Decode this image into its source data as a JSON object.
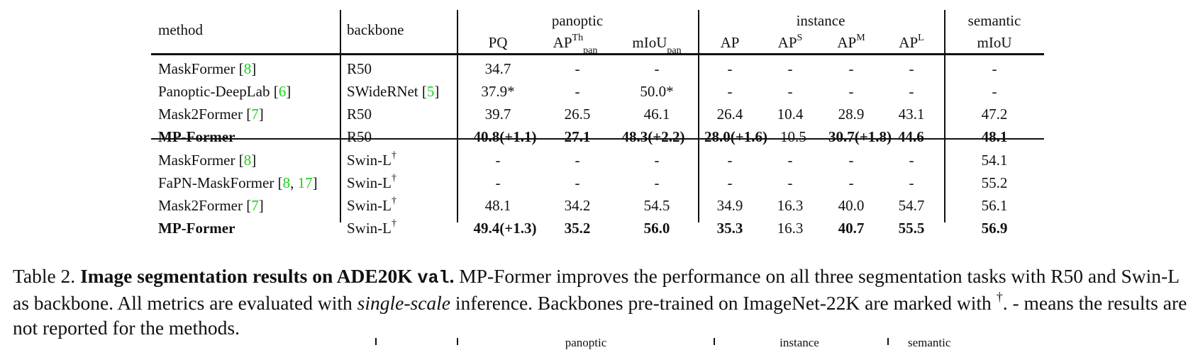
{
  "table": {
    "headers": {
      "method": "method",
      "backbone": "backbone",
      "group_panoptic": "panoptic",
      "group_instance": "instance",
      "group_semantic": "semantic",
      "pq": "PQ",
      "ap_th": "AP",
      "ap_th_sup": "Th",
      "ap_th_sub": "pan",
      "miou_pan": "mIoU",
      "miou_pan_sub": "pan",
      "ap": "AP",
      "ap_s": "AP",
      "ap_s_sup": "S",
      "ap_m": "AP",
      "ap_m_sup": "M",
      "ap_l": "AP",
      "ap_l_sup": "L",
      "miou": "mIoU"
    },
    "rows": [
      {
        "method": "MaskFormer",
        "ref": "8",
        "backbone": "R50",
        "pq": "34.7",
        "ap_th": "-",
        "miou_pan": "-",
        "ap": "-",
        "ap_s": "-",
        "ap_m": "-",
        "ap_l": "-",
        "miou": "-"
      },
      {
        "method": "Panoptic-DeepLab",
        "ref": "6",
        "backbone": "SWideRNet",
        "backbone_ref": "5",
        "pq": "37.9*",
        "ap_th": "-",
        "miou_pan": "50.0*",
        "ap": "-",
        "ap_s": "-",
        "ap_m": "-",
        "ap_l": "-",
        "miou": "-"
      },
      {
        "method": "Mask2Former",
        "ref": "7",
        "backbone": "R50",
        "pq": "39.7",
        "ap_th": "26.5",
        "miou_pan": "46.1",
        "ap": "26.4",
        "ap_s": "10.4",
        "ap_m": "28.9",
        "ap_l": "43.1",
        "miou": "47.2"
      },
      {
        "method": "MP-Former",
        "backbone": "R50",
        "pq": "40.8(+1.1)",
        "ap_th": "27.1",
        "miou_pan": "48.3(+2.2)",
        "ap": "28.0(+1.6)",
        "ap_s": "10.5",
        "ap_m": "30.7(+1.8)",
        "ap_l": "44.6",
        "miou": "48.1"
      },
      {
        "method": "MaskFormer",
        "ref": "8",
        "backbone": "Swin-L",
        "backbone_dagger": "†",
        "pq": "-",
        "ap_th": "-",
        "miou_pan": "-",
        "ap": "-",
        "ap_s": "-",
        "ap_m": "-",
        "ap_l": "-",
        "miou": "54.1"
      },
      {
        "method": "FaPN-MaskFormer",
        "ref": "8",
        "ref2": "17",
        "backbone": "Swin-L",
        "backbone_dagger": "†",
        "pq": "-",
        "ap_th": "-",
        "miou_pan": "-",
        "ap": "-",
        "ap_s": "-",
        "ap_m": "-",
        "ap_l": "-",
        "miou": "55.2"
      },
      {
        "method": "Mask2Former",
        "ref": "7",
        "backbone": "Swin-L",
        "backbone_dagger": "†",
        "pq": "48.1",
        "ap_th": "34.2",
        "miou_pan": "54.5",
        "ap": "34.9",
        "ap_s": "16.3",
        "ap_m": "40.0",
        "ap_l": "54.7",
        "miou": "56.1"
      },
      {
        "method": "MP-Former",
        "backbone": "Swin-L",
        "backbone_dagger": "†",
        "pq": "49.4(+1.3)",
        "ap_th": "35.2",
        "miou_pan": "56.0",
        "ap": "35.3",
        "ap_s": "16.3",
        "ap_m": "40.7",
        "ap_l": "55.5",
        "miou": "56.9"
      }
    ]
  },
  "caption": {
    "label": "Table 2.",
    "title_a": "Image segmentation results on ADE20K",
    "title_code": "val",
    "title_end": ".",
    "body_a": " MP-Former improves the performance on all three segmentation tasks with R50 and Swin-L as backbone. All metrics are evaluated with ",
    "body_italic": "single-scale",
    "body_b": " inference. Backbones pre-trained on ImageNet-22K are marked with ",
    "dagger": "†",
    "body_c": ". - means the results are not reported for the methods."
  },
  "next_table_fragment": {
    "panoptic": "panoptic",
    "instance": "instance",
    "semantic": "semantic"
  }
}
